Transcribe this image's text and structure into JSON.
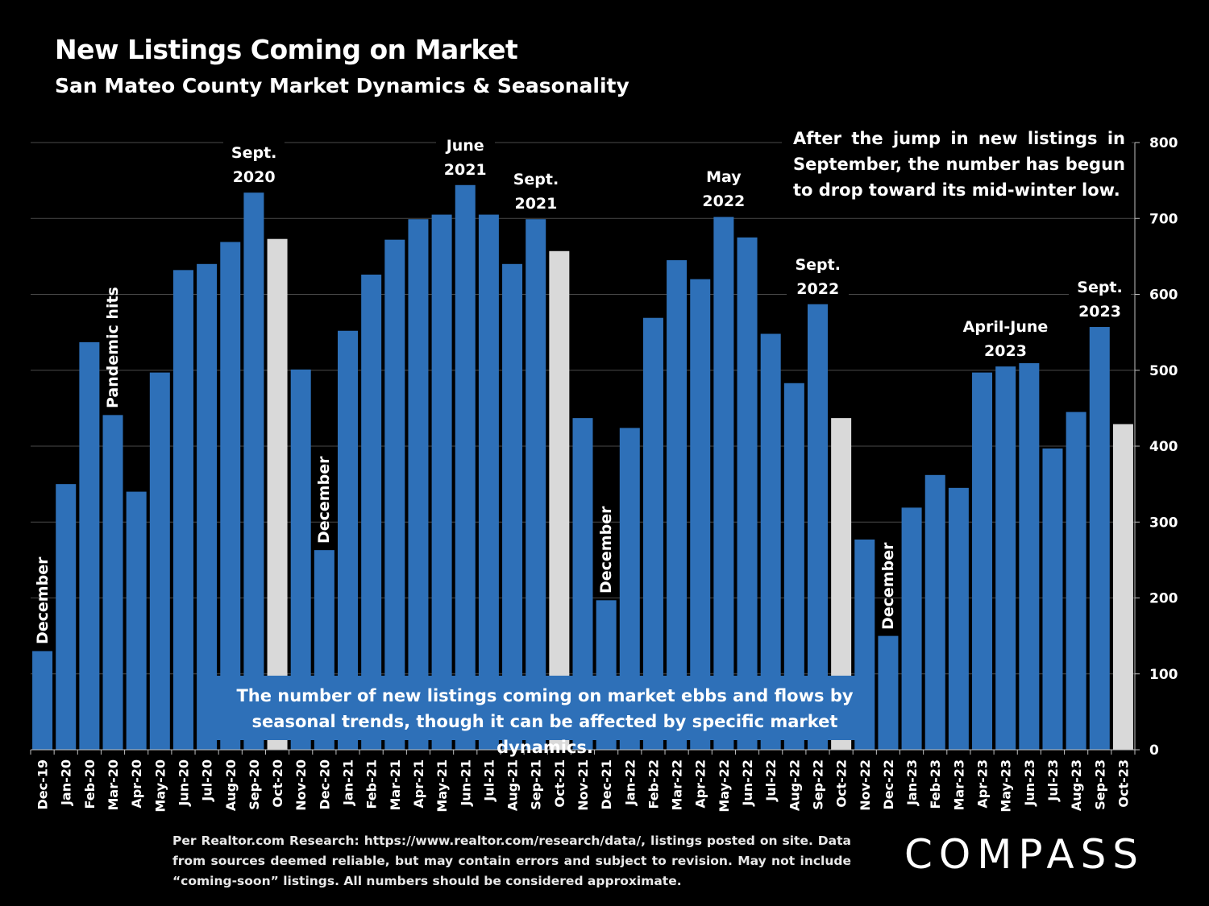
{
  "header": {
    "title": "New Listings Coming on Market",
    "subtitle": "San Mateo County Market Dynamics & Seasonality"
  },
  "chart_data": {
    "type": "bar",
    "title": "New Listings Coming on Market",
    "subtitle": "San Mateo County Market Dynamics & Seasonality",
    "xlabel": "",
    "ylabel": "",
    "ylim": [
      0,
      800
    ],
    "yticks": [
      0,
      100,
      200,
      300,
      400,
      500,
      600,
      700,
      800
    ],
    "y_axis_position": "right",
    "grid": true,
    "categories": [
      "Dec-19",
      "Jan-20",
      "Feb-20",
      "Mar-20",
      "Apr-20",
      "May-20",
      "Jun-20",
      "Jul-20",
      "Aug-20",
      "Sep-20",
      "Oct-20",
      "Nov-20",
      "Dec-20",
      "Jan-21",
      "Feb-21",
      "Mar-21",
      "Apr-21",
      "May-21",
      "Jun-21",
      "Jul-21",
      "Aug-21",
      "Sep-21",
      "Oct-21",
      "Nov-21",
      "Dec-21",
      "Jan-22",
      "Feb-22",
      "Mar-22",
      "Apr-22",
      "May-22",
      "Jun-22",
      "Jul-22",
      "Aug-22",
      "Sep-22",
      "Oct-22",
      "Nov-22",
      "Dec-22",
      "Jan-23",
      "Feb-23",
      "Mar-23",
      "Apr-23",
      "May-23",
      "Jun-23",
      "Jul-23",
      "Aug-23",
      "Sep-23",
      "Oct-23"
    ],
    "values": [
      130,
      350,
      537,
      441,
      340,
      497,
      632,
      640,
      669,
      734,
      673,
      501,
      263,
      552,
      626,
      672,
      699,
      705,
      744,
      705,
      640,
      699,
      657,
      437,
      197,
      424,
      569,
      645,
      620,
      702,
      675,
      548,
      483,
      587,
      437,
      277,
      150,
      319,
      362,
      345,
      497,
      505,
      515,
      397,
      445,
      557,
      429
    ],
    "highlighted": [
      "Oct-20",
      "Oct-21",
      "Oct-22",
      "Oct-23"
    ],
    "colors": {
      "bar": "#2e70b8",
      "highlight": "#d9d9d9",
      "grid": "#4a4a4a",
      "background": "#000000"
    },
    "annotations": [
      {
        "text": "December",
        "at": "Dec-19",
        "orientation": "vertical"
      },
      {
        "text": "Pandemic hits",
        "at": "Mar-20",
        "orientation": "vertical"
      },
      {
        "text": "December",
        "at": "Dec-20",
        "orientation": "vertical"
      },
      {
        "text": "December",
        "at": "Dec-21",
        "orientation": "vertical"
      },
      {
        "text": "December",
        "at": "Dec-22",
        "orientation": "vertical"
      },
      {
        "lines": [
          "Sept.",
          "2020"
        ],
        "at": "Sep-20"
      },
      {
        "lines": [
          "June",
          "2021"
        ],
        "at": "Jun-21"
      },
      {
        "lines": [
          "Sept.",
          "2021"
        ],
        "at": "Sep-21"
      },
      {
        "lines": [
          "May",
          "2022"
        ],
        "at": "May-22"
      },
      {
        "lines": [
          "Sept.",
          "2022"
        ],
        "at": "Sep-22"
      },
      {
        "lines": [
          "April-June",
          "2023"
        ],
        "at": "May-23"
      },
      {
        "lines": [
          "Sept.",
          "2023"
        ],
        "at": "Sep-23"
      }
    ]
  },
  "notes": {
    "top_right": "After the jump in new listings in September, the number has begun to drop toward its mid-winter low.",
    "box_line1": "The number of new listings coming on market ebbs and flows by",
    "box_line2": "seasonal trends, though it can be affected by specific market dynamics."
  },
  "footnote": "Per Realtor.com Research: https://www.realtor.com/research/data/, listings posted on site. Data from sources deemed reliable, but may contain errors and subject to revision. May not include “coming-soon” listings. All numbers should be considered approximate.",
  "brand": {
    "logo_text": "COMPASS"
  }
}
